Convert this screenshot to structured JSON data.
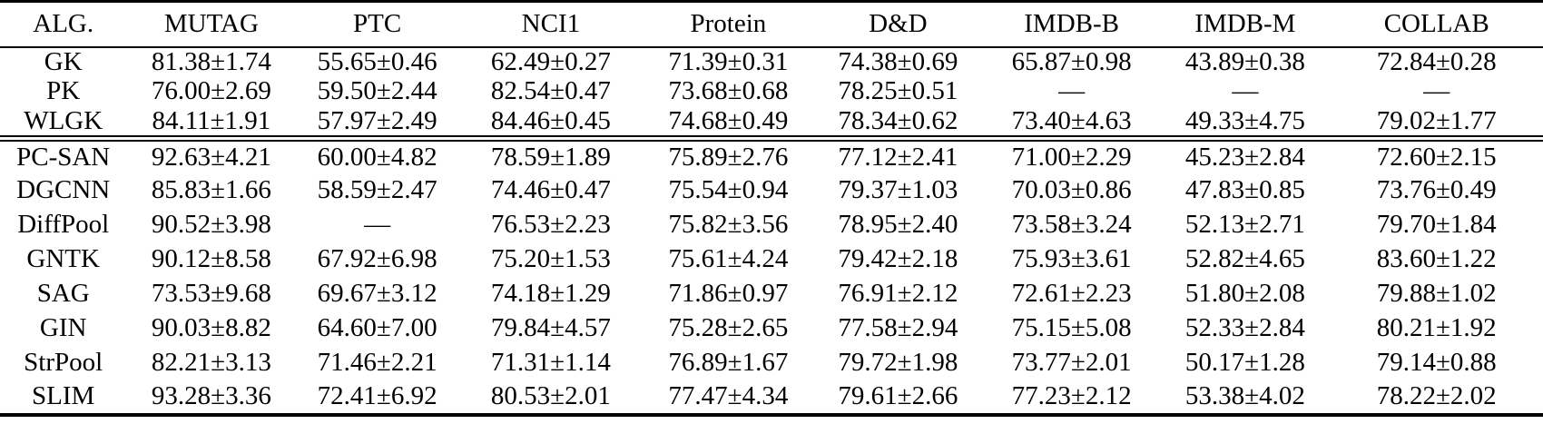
{
  "page": {
    "background_color": "#ffffff",
    "text_color": "#000000",
    "missing_value_symbol": "—"
  },
  "table": {
    "columns": [
      "ALG.",
      "MUTAG",
      "PTC",
      "NCI1",
      "Protein",
      "D&D",
      "IMDB-B",
      "IMDB-M",
      "COLLAB"
    ],
    "sections": [
      {
        "name": "graph-kernel-methods",
        "rows": [
          {
            "alg": "GK",
            "cells": [
              "81.38±1.74",
              "55.65±0.46",
              "62.49±0.27",
              "71.39±0.31",
              "74.38±0.69",
              "65.87±0.98",
              "43.89±0.38",
              "72.84±0.28"
            ],
            "bold": [
              0,
              0,
              0,
              0,
              0,
              0,
              0,
              0
            ]
          },
          {
            "alg": "PK",
            "cells": [
              "76.00±2.69",
              "59.50±2.44",
              "82.54±0.47",
              "73.68±0.68",
              "78.25±0.51",
              "—",
              "—",
              "—"
            ],
            "bold": [
              0,
              0,
              0,
              0,
              0,
              0,
              0,
              0
            ]
          },
          {
            "alg": "WLGK",
            "cells": [
              "84.11±1.91",
              "57.97±2.49",
              "84.46±0.45",
              "74.68±0.49",
              "78.34±0.62",
              "73.40±4.63",
              "49.33±4.75",
              "79.02±1.77"
            ],
            "bold": [
              0,
              0,
              1,
              0,
              0,
              0,
              0,
              0
            ]
          }
        ]
      },
      {
        "name": "gnn-methods",
        "rows": [
          {
            "alg": "PC-SAN",
            "cells": [
              "92.63±4.21",
              "60.00±4.82",
              "78.59±1.89",
              "75.89±2.76",
              "77.12±2.41",
              "71.00±2.29",
              "45.23±2.84",
              "72.60±2.15"
            ],
            "bold": [
              0,
              0,
              0,
              0,
              0,
              0,
              0,
              0
            ]
          },
          {
            "alg": "DGCNN",
            "cells": [
              "85.83±1.66",
              "58.59±2.47",
              "74.46±0.47",
              "75.54±0.94",
              "79.37±1.03",
              "70.03±0.86",
              "47.83±0.85",
              "73.76±0.49"
            ],
            "bold": [
              0,
              0,
              0,
              0,
              0,
              0,
              0,
              0
            ]
          },
          {
            "alg": "DiffPool",
            "cells": [
              "90.52±3.98",
              "—",
              "76.53±2.23",
              "75.82±3.56",
              "78.95±2.40",
              "73.58±3.24",
              "52.13±2.71",
              "79.70±1.84"
            ],
            "bold": [
              0,
              0,
              0,
              0,
              0,
              0,
              0,
              0
            ]
          },
          {
            "alg": "GNTK",
            "cells": [
              "90.12±8.58",
              "67.92±6.98",
              "75.20±1.53",
              "75.61±4.24",
              "79.42±2.18",
              "75.93±3.61",
              "52.82±4.65",
              "83.60±1.22"
            ],
            "bold": [
              0,
              0,
              0,
              0,
              0,
              0,
              0,
              1
            ]
          },
          {
            "alg": "SAG",
            "cells": [
              "73.53±9.68",
              "69.67±3.12",
              "74.18±1.29",
              "71.86±0.97",
              "76.91±2.12",
              "72.61±2.23",
              "51.80±2.08",
              "79.88±1.02"
            ],
            "bold": [
              0,
              0,
              0,
              0,
              0,
              0,
              0,
              0
            ]
          },
          {
            "alg": "GIN",
            "cells": [
              "90.03±8.82",
              "64.60±7.00",
              "79.84±4.57",
              "75.28±2.65",
              "77.58±2.94",
              "75.15±5.08",
              "52.33±2.84",
              "80.21±1.92"
            ],
            "bold": [
              0,
              0,
              0,
              0,
              0,
              0,
              0,
              0
            ]
          },
          {
            "alg": "StrPool",
            "cells": [
              "82.21±3.13",
              "71.46±2.21",
              "71.31±1.14",
              "76.89±1.67",
              "79.72±1.98",
              "73.77±2.01",
              "50.17±1.28",
              "79.14±0.88"
            ],
            "bold": [
              0,
              0,
              0,
              0,
              1,
              0,
              0,
              0
            ]
          },
          {
            "alg": "SLIM",
            "cells": [
              "93.28±3.36",
              "72.41±6.92",
              "80.53±2.01",
              "77.47±4.34",
              "79.61±2.66",
              "77.23±2.12",
              "53.38±4.02",
              "78.22±2.02"
            ],
            "bold": [
              1,
              1,
              1,
              1,
              0,
              1,
              1,
              0
            ]
          }
        ]
      }
    ]
  }
}
